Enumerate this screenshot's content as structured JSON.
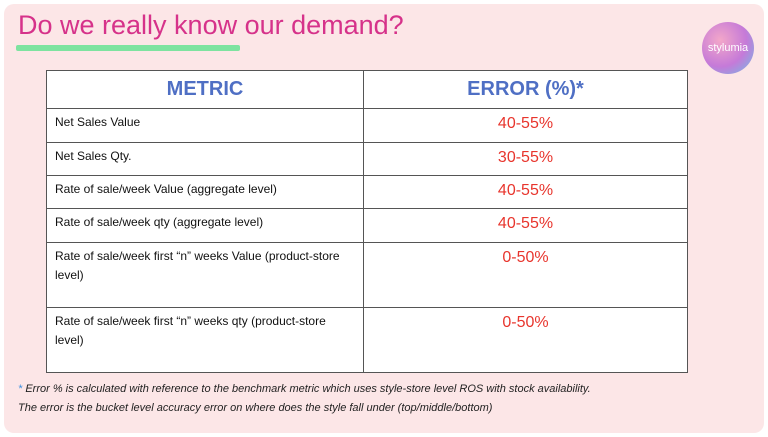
{
  "header": {
    "title": "Do we really know our demand?",
    "logo": "stylumia"
  },
  "table": {
    "headers": [
      "METRIC",
      "ERROR (%)*"
    ],
    "rows": [
      [
        "Net Sales Value",
        "40-55%"
      ],
      [
        "Net Sales Qty.",
        "30-55%"
      ],
      [
        "Rate of sale/week Value (aggregate level)",
        "40-55%"
      ],
      [
        "Rate of sale/week qty (aggregate level)",
        "40-55%"
      ],
      [
        "Rate of sale/week first “n” weeks Value (product-store level)",
        "0-50%"
      ],
      [
        "Rate of sale/week first “n” weeks qty (product-store level)",
        "0-50%"
      ]
    ]
  },
  "footnote": {
    "marker": "*",
    "lines": [
      "Error % is calculated with reference to the benchmark metric which uses style-store level ROS with stock availability.",
      "The error is the bucket level accuracy error on where does the style fall under (top/middle/bottom)"
    ]
  }
}
